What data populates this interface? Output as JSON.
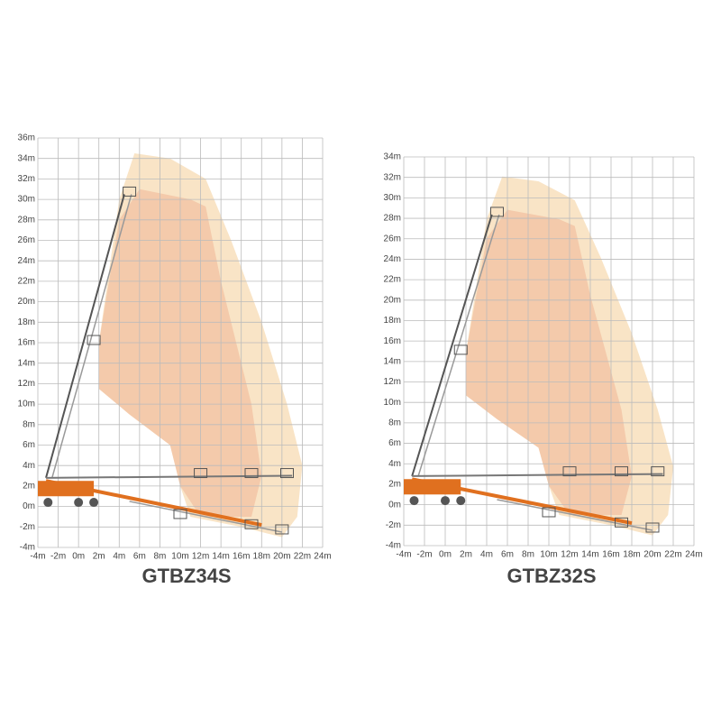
{
  "charts": [
    {
      "title": "GTBZ34S",
      "y_labels": [
        "36m",
        "34m",
        "32m",
        "30m",
        "28m",
        "26m",
        "24m",
        "22m",
        "20m",
        "18m",
        "16m",
        "14m",
        "12m",
        "10m",
        "8m",
        "6m",
        "4m",
        "2m",
        "0m",
        "-2m",
        "-4m"
      ],
      "x_labels": [
        "-4m",
        "-2m",
        "0m",
        "2m",
        "4m",
        "6m",
        "8m",
        "10m",
        "12m",
        "14m",
        "16m",
        "18m",
        "20m",
        "22m",
        "24m"
      ]
    },
    {
      "title": "GTBZ32S",
      "y_labels": [
        "34m",
        "32m",
        "30m",
        "28m",
        "26m",
        "24m",
        "22m",
        "20m",
        "18m",
        "16m",
        "14m",
        "12m",
        "10m",
        "8m",
        "6m",
        "4m",
        "2m",
        "0m",
        "-2m",
        "-4m"
      ],
      "x_labels": [
        "-4m",
        "-2m",
        "0m",
        "2m",
        "4m",
        "6m",
        "8m",
        "10m",
        "12m",
        "14m",
        "16m",
        "18m",
        "20m",
        "22m",
        "24m"
      ]
    }
  ]
}
